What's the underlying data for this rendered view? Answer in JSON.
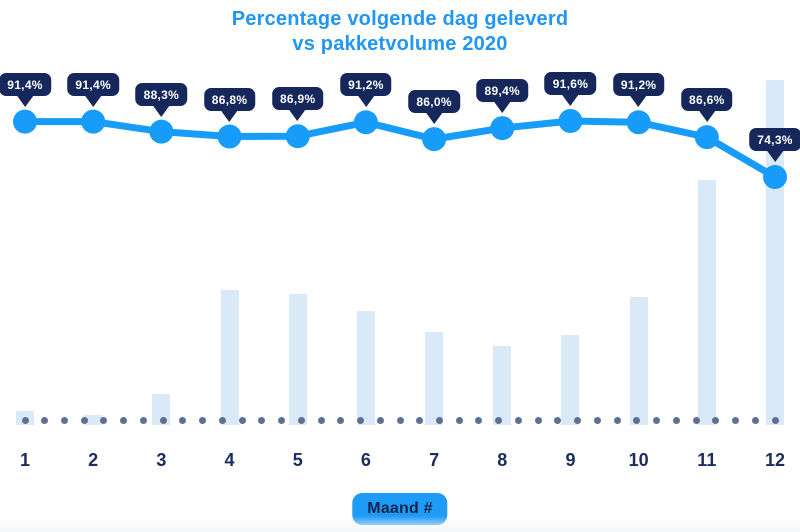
{
  "colors": {
    "title_blue": "#2196F3",
    "line_blue": "#189CF9",
    "bar_fill": "#DAE9F8",
    "badge_navy": "#16275B",
    "axis_navy": "#1B2D5E",
    "dot_slate": "#5E6F94",
    "button_blue": "#1E9BF7",
    "button_text_navy": "#132449",
    "background": "#FFFFFF"
  },
  "chart_data": {
    "type": "line+bar",
    "title": "Percentage volgende dag geleverd vs pakketvolume 2020",
    "title_lines": [
      "Percentage volgende dag geleverd",
      "vs pakketvolume 2020"
    ],
    "categories": [
      "1",
      "2",
      "3",
      "4",
      "5",
      "6",
      "7",
      "8",
      "9",
      "10",
      "11",
      "12"
    ],
    "xlabel": "Maand #",
    "ylabel": "",
    "grid": false,
    "legend_position": "none",
    "series": [
      {
        "name": "Percentage volgende dag geleverd",
        "type": "line",
        "values": [
          91.4,
          91.4,
          88.3,
          86.8,
          86.9,
          91.2,
          86.0,
          89.4,
          91.6,
          91.2,
          86.6,
          74.3
        ],
        "labels": [
          "91,4%",
          "91,4%",
          "88,3%",
          "86,8%",
          "86,9%",
          "91,2%",
          "86,0%",
          "89,4%",
          "91,6%",
          "91,2%",
          "86,6%",
          "74,3%"
        ],
        "label_style": "navy-tooltip-badge"
      },
      {
        "name": "Pakketvolume 2020",
        "type": "bar",
        "values": [
          4,
          3,
          9,
          39,
          38,
          33,
          27,
          23,
          26,
          37,
          71,
          100
        ],
        "unit": "relative index (max month 12 = 100)"
      }
    ],
    "baseline": {
      "style": "dotted",
      "y_value": "x-axis"
    }
  }
}
